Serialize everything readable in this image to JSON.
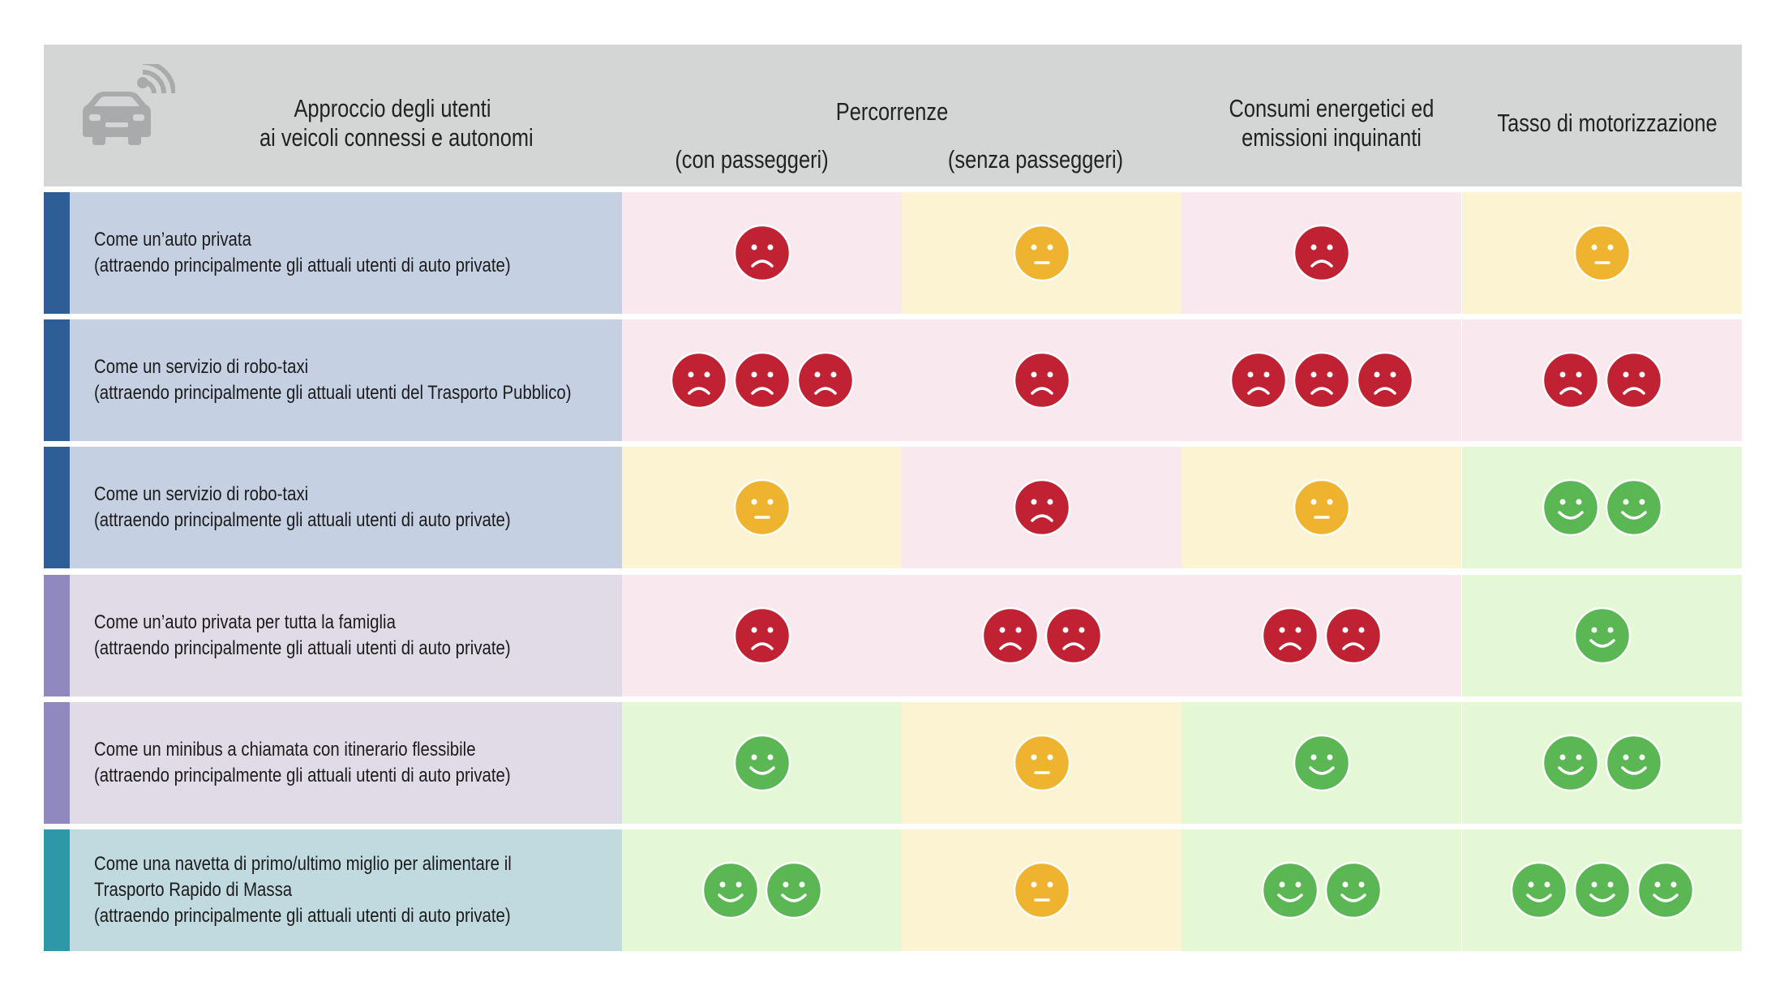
{
  "header": {
    "approach_title_1": "Approccio degli utenti",
    "approach_title_2": "ai veicoli connessi e autonomi",
    "percorrenze": "Percorrenze",
    "con_passeggeri": "(con passeggeri)",
    "senza_passeggeri": "(senza passeggeri)",
    "consumi_1": "Consumi energetici ed",
    "consumi_2": "emissioni inquinanti",
    "tasso": "Tasso di motorizzazione",
    "icon": "connected-car-icon"
  },
  "colors": {
    "header_bg": "#d4d6d5",
    "red_bg": "#f9e9ef",
    "yellow_bg": "#fbf3d2",
    "green_bg": "#e5f8d5",
    "sad_face": "#c12233",
    "neutral_face": "#efb42f",
    "happy_face": "#5bb654",
    "stripe_dark_blue": "#2f5e96",
    "stripe_purple": "#8f89bf",
    "stripe_teal": "#2e97a8",
    "label_blue": "#c5d0e2",
    "label_purple": "#e0dbe6",
    "label_teal": "#c1dadf"
  },
  "rows": [
    {
      "lines": [
        "Come un’auto privata",
        "(attraendo principalmente gli attuali utenti di auto private)"
      ],
      "stripe": "#2f5e96",
      "label_bg": "#c5d0e2",
      "cells": [
        {
          "face": "sad",
          "count": 1,
          "bg": "#f9e9ef"
        },
        {
          "face": "neutral",
          "count": 1,
          "bg": "#fbf3d2"
        },
        {
          "face": "sad",
          "count": 1,
          "bg": "#f9e9ef"
        },
        {
          "face": "neutral",
          "count": 1,
          "bg": "#fbf3d2"
        }
      ]
    },
    {
      "lines": [
        "Come un servizio di robo-taxi",
        "(attraendo principalmente gli attuali utenti del Trasporto Pubblico)"
      ],
      "stripe": "#2f5e96",
      "label_bg": "#c5d0e2",
      "cells": [
        {
          "face": "sad",
          "count": 3,
          "bg": "#f9e9ef"
        },
        {
          "face": "sad",
          "count": 1,
          "bg": "#f9e9ef"
        },
        {
          "face": "sad",
          "count": 3,
          "bg": "#f9e9ef"
        },
        {
          "face": "sad",
          "count": 2,
          "bg": "#f9e9ef"
        }
      ]
    },
    {
      "lines": [
        "Come un servizio di robo-taxi",
        "(attraendo principalmente gli attuali utenti di auto private)"
      ],
      "stripe": "#2f5e96",
      "label_bg": "#c5d0e2",
      "cells": [
        {
          "face": "neutral",
          "count": 1,
          "bg": "#fbf3d2"
        },
        {
          "face": "sad",
          "count": 1,
          "bg": "#f9e9ef"
        },
        {
          "face": "neutral",
          "count": 1,
          "bg": "#fbf3d2"
        },
        {
          "face": "happy",
          "count": 2,
          "bg": "#e5f8d5"
        }
      ]
    },
    {
      "lines": [
        "Come un’auto privata per tutta la famiglia",
        "(attraendo principalmente gli attuali utenti di auto private)"
      ],
      "stripe": "#8f89bf",
      "label_bg": "#e0dbe6",
      "cells": [
        {
          "face": "sad",
          "count": 1,
          "bg": "#f9e9ef"
        },
        {
          "face": "sad",
          "count": 2,
          "bg": "#f9e9ef"
        },
        {
          "face": "sad",
          "count": 2,
          "bg": "#f9e9ef"
        },
        {
          "face": "happy",
          "count": 1,
          "bg": "#e5f8d5"
        }
      ]
    },
    {
      "lines": [
        "Come un minibus a chiamata con itinerario flessibile",
        "(attraendo principalmente gli attuali utenti di auto private)"
      ],
      "stripe": "#8f89bf",
      "label_bg": "#e0dbe6",
      "cells": [
        {
          "face": "happy",
          "count": 1,
          "bg": "#e5f8d5"
        },
        {
          "face": "neutral",
          "count": 1,
          "bg": "#fbf3d2"
        },
        {
          "face": "happy",
          "count": 1,
          "bg": "#e5f8d5"
        },
        {
          "face": "happy",
          "count": 2,
          "bg": "#e5f8d5"
        }
      ]
    },
    {
      "lines": [
        "Come una navetta di primo/ultimo miglio per alimentare il",
        "Trasporto Rapido di Massa",
        "(attraendo principalmente gli attuali utenti di auto private)"
      ],
      "stripe": "#2e97a8",
      "label_bg": "#c1dadf",
      "cells": [
        {
          "face": "happy",
          "count": 2,
          "bg": "#e5f8d5"
        },
        {
          "face": "neutral",
          "count": 1,
          "bg": "#fbf3d2"
        },
        {
          "face": "happy",
          "count": 2,
          "bg": "#e5f8d5"
        },
        {
          "face": "happy",
          "count": 3,
          "bg": "#e5f8d5"
        }
      ]
    }
  ]
}
